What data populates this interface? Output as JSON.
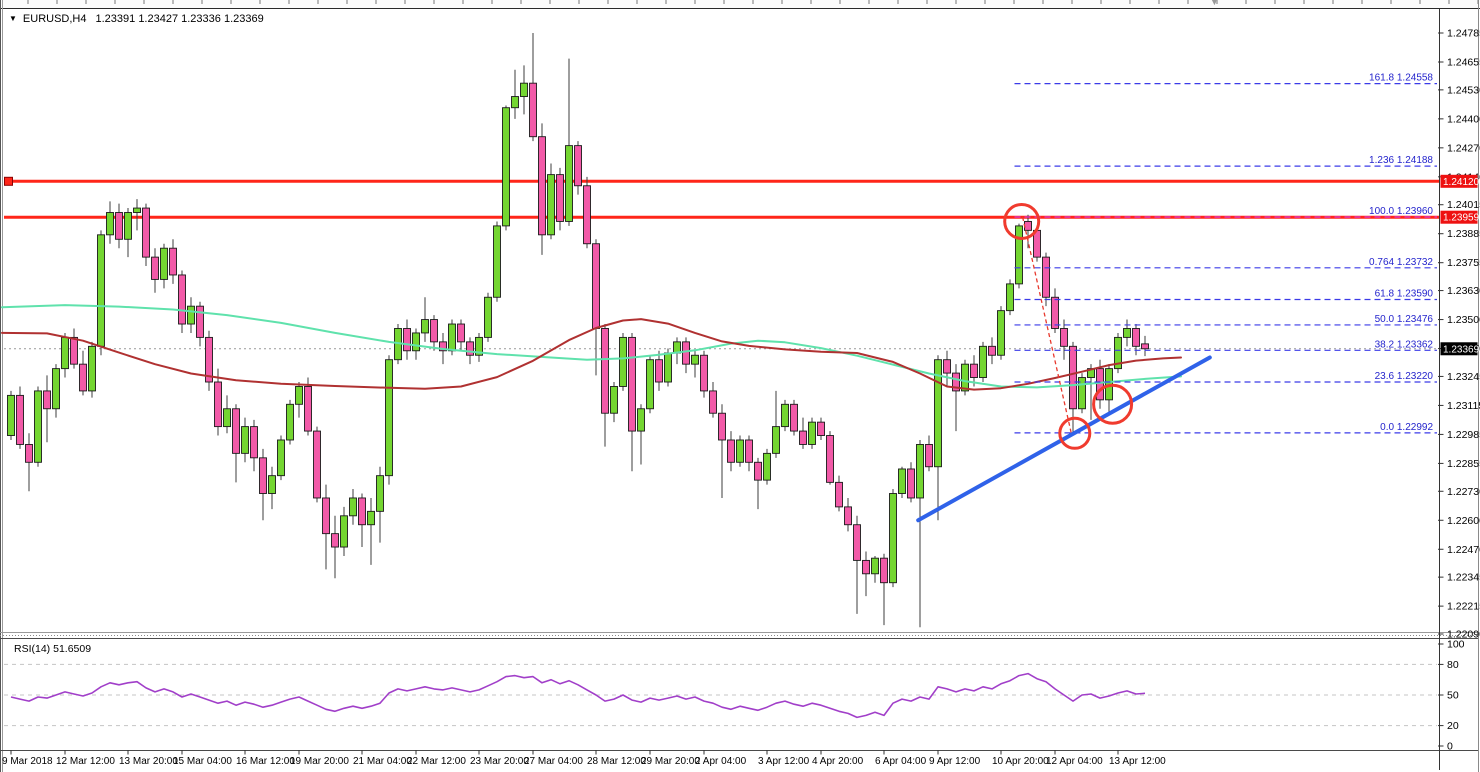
{
  "window": {
    "title_symbol": "EURUSD,H4",
    "title_ohlc": "1.23391 1.23427 1.23336 1.23369",
    "dropdown_caret": "▼"
  },
  "colors": {
    "background": "#FFFFFF",
    "bull": "#74D631",
    "bear": "#F25AA8",
    "candle_outline": "#1a1a1a",
    "wick": "#3C3C3C",
    "ma_green": "#5FE2AC",
    "ma_red": "#B03131",
    "resistance_line": "#FF2619",
    "fib_line": "#3B3BE8",
    "fib_label": "#2424CC",
    "fib_100": "#DB3BDB",
    "fib_connector": "#E8392E",
    "trendline": "#2F62E9",
    "circle": "#F03B2E",
    "rsi_line": "#A13FC9",
    "rsi_grid": "#C4C4C4",
    "current_price_line": "#999999",
    "tag_red_bg": "#EE1111",
    "tag_black_bg": "#000000",
    "tag_text": "#FFFFFF",
    "axis_text": "#000000"
  },
  "chart_data": {
    "type": "candlestick",
    "symbol": "EURUSD",
    "timeframe": "H4",
    "price_range": {
      "top": 1.24785,
      "bottom": 1.2209
    },
    "price_axis_ticks": [
      "1.24785",
      "1.24655",
      "1.24530",
      "1.24400",
      "1.24270",
      "1.24140",
      "1.24015",
      "1.23885",
      "1.23755",
      "1.23630",
      "1.23500",
      "1.23370",
      "1.23245",
      "1.23115",
      "1.22985",
      "1.22855",
      "1.22730",
      "1.22600",
      "1.22470",
      "1.22345",
      "1.22215",
      "1.22090"
    ],
    "x_labels": [
      {
        "label": "9 Mar 2018",
        "index": 0
      },
      {
        "label": "12 Mar 12:00",
        "index": 6
      },
      {
        "label": "13 Mar 20:00",
        "index": 13
      },
      {
        "label": "15 Mar 04:00",
        "index": 19
      },
      {
        "label": "16 Mar 12:00",
        "index": 26
      },
      {
        "label": "19 Mar 20:00",
        "index": 32
      },
      {
        "label": "21 Mar 04:00",
        "index": 39
      },
      {
        "label": "22 Mar 12:00",
        "index": 45
      },
      {
        "label": "23 Mar 20:00",
        "index": 52
      },
      {
        "label": "27 Mar 04:00",
        "index": 58
      },
      {
        "label": "28 Mar 12:00",
        "index": 65
      },
      {
        "label": "29 Mar 20:00",
        "index": 71
      },
      {
        "label": "2 Apr 04:00",
        "index": 77
      },
      {
        "label": "3 Apr 12:00",
        "index": 84
      },
      {
        "label": "4 Apr 20:00",
        "index": 90
      },
      {
        "label": "6 Apr 04:00",
        "index": 97
      },
      {
        "label": "9 Apr 12:00",
        "index": 103
      },
      {
        "label": "10 Apr 20:00",
        "index": 110
      },
      {
        "label": "12 Apr 04:00",
        "index": 116
      },
      {
        "label": "13 Apr 12:00",
        "index": 123
      }
    ],
    "candles": [
      [
        1.2298,
        1.2318,
        1.2296,
        1.2316
      ],
      [
        1.2316,
        1.232,
        1.2292,
        1.2294
      ],
      [
        1.2294,
        1.2299,
        1.2273,
        1.2286
      ],
      [
        1.2286,
        1.232,
        1.2284,
        1.2318
      ],
      [
        1.2318,
        1.2325,
        1.2295,
        1.231
      ],
      [
        1.231,
        1.233,
        1.2306,
        1.2328
      ],
      [
        1.2328,
        1.2344,
        1.2324,
        1.2342
      ],
      [
        1.2342,
        1.2346,
        1.2328,
        1.233
      ],
      [
        1.233,
        1.2336,
        1.2316,
        1.2318
      ],
      [
        1.2318,
        1.234,
        1.2315,
        1.2338
      ],
      [
        1.2338,
        1.239,
        1.2334,
        1.2388
      ],
      [
        1.2388,
        1.2403,
        1.2384,
        1.2398
      ],
      [
        1.2398,
        1.2402,
        1.2382,
        1.2386
      ],
      [
        1.2386,
        1.24,
        1.2378,
        1.2398
      ],
      [
        1.2398,
        1.2404,
        1.239,
        1.24
      ],
      [
        1.24,
        1.2402,
        1.2374,
        1.2378
      ],
      [
        1.2378,
        1.2382,
        1.2362,
        1.2368
      ],
      [
        1.2368,
        1.2384,
        1.2364,
        1.2382
      ],
      [
        1.2382,
        1.2386,
        1.2366,
        1.237
      ],
      [
        1.237,
        1.2372,
        1.2344,
        1.2348
      ],
      [
        1.2348,
        1.236,
        1.2344,
        1.2356
      ],
      [
        1.2356,
        1.2358,
        1.2338,
        1.2342
      ],
      [
        1.2342,
        1.2345,
        1.2318,
        1.2322
      ],
      [
        1.2322,
        1.2328,
        1.2298,
        1.2302
      ],
      [
        1.2302,
        1.2316,
        1.2299,
        1.231
      ],
      [
        1.231,
        1.2312,
        1.2277,
        1.229
      ],
      [
        1.229,
        1.2306,
        1.2286,
        1.2302
      ],
      [
        1.2302,
        1.2305,
        1.2282,
        1.2288
      ],
      [
        1.2288,
        1.2292,
        1.226,
        1.2272
      ],
      [
        1.2272,
        1.2284,
        1.2265,
        1.228
      ],
      [
        1.228,
        1.2298,
        1.2278,
        1.2296
      ],
      [
        1.2296,
        1.2314,
        1.2294,
        1.2312
      ],
      [
        1.2312,
        1.2322,
        1.2306,
        1.232
      ],
      [
        1.232,
        1.2324,
        1.2298,
        1.23
      ],
      [
        1.23,
        1.2302,
        1.2268,
        1.227
      ],
      [
        1.227,
        1.2276,
        1.2238,
        1.2254
      ],
      [
        1.2254,
        1.2262,
        1.2234,
        1.2248
      ],
      [
        1.2248,
        1.2266,
        1.2244,
        1.2262
      ],
      [
        1.2262,
        1.2274,
        1.2258,
        1.227
      ],
      [
        1.227,
        1.2272,
        1.2248,
        1.2258
      ],
      [
        1.2258,
        1.227,
        1.224,
        1.2264
      ],
      [
        1.2264,
        1.2284,
        1.225,
        1.228
      ],
      [
        1.228,
        1.2334,
        1.2276,
        1.2332
      ],
      [
        1.2332,
        1.2348,
        1.233,
        1.2346
      ],
      [
        1.2346,
        1.235,
        1.2332,
        1.2336
      ],
      [
        1.2336,
        1.2346,
        1.2332,
        1.2344
      ],
      [
        1.2344,
        1.236,
        1.234,
        1.235
      ],
      [
        1.235,
        1.2352,
        1.2336,
        1.234
      ],
      [
        1.234,
        1.2344,
        1.233,
        1.2336
      ],
      [
        1.2336,
        1.235,
        1.2334,
        1.2348
      ],
      [
        1.2348,
        1.235,
        1.2336,
        1.234
      ],
      [
        1.234,
        1.2342,
        1.233,
        1.2334
      ],
      [
        1.2334,
        1.2344,
        1.2331,
        1.2342
      ],
      [
        1.2342,
        1.2362,
        1.234,
        1.236
      ],
      [
        1.236,
        1.2394,
        1.2358,
        1.2392
      ],
      [
        1.2392,
        1.2446,
        1.239,
        1.2445
      ],
      [
        1.2445,
        1.2462,
        1.244,
        1.245
      ],
      [
        1.245,
        1.2464,
        1.2442,
        1.2456
      ],
      [
        1.2456,
        1.24785,
        1.243,
        1.2432
      ],
      [
        1.2432,
        1.2438,
        1.2379,
        1.2388
      ],
      [
        1.2388,
        1.242,
        1.2386,
        1.2415
      ],
      [
        1.2415,
        1.2418,
        1.239,
        1.2394
      ],
      [
        1.2394,
        1.2467,
        1.2392,
        1.2428
      ],
      [
        1.2428,
        1.243,
        1.2406,
        1.241
      ],
      [
        1.241,
        1.2414,
        1.2382,
        1.2384
      ],
      [
        1.2384,
        1.2386,
        1.2325,
        1.2346
      ],
      [
        1.2346,
        1.2348,
        1.2293,
        1.2308
      ],
      [
        1.2308,
        1.2322,
        1.2304,
        1.232
      ],
      [
        1.232,
        1.2344,
        1.2318,
        1.2342
      ],
      [
        1.2342,
        1.2344,
        1.2282,
        1.23
      ],
      [
        1.23,
        1.2312,
        1.2285,
        1.231
      ],
      [
        1.231,
        1.2334,
        1.2308,
        1.2332
      ],
      [
        1.2332,
        1.2336,
        1.2318,
        1.2322
      ],
      [
        1.2322,
        1.2337,
        1.232,
        1.2335
      ],
      [
        1.2335,
        1.2342,
        1.233,
        1.234
      ],
      [
        1.234,
        1.2342,
        1.2326,
        1.233
      ],
      [
        1.233,
        1.2336,
        1.2324,
        1.2334
      ],
      [
        1.2334,
        1.2336,
        1.2315,
        1.2318
      ],
      [
        1.2318,
        1.2322,
        1.2306,
        1.2308
      ],
      [
        1.2308,
        1.2312,
        1.227,
        1.2296
      ],
      [
        1.2296,
        1.23,
        1.2282,
        1.2286
      ],
      [
        1.2286,
        1.2298,
        1.2284,
        1.2296
      ],
      [
        1.2296,
        1.2298,
        1.2282,
        1.2286
      ],
      [
        1.2286,
        1.2288,
        1.2265,
        1.2278
      ],
      [
        1.2278,
        1.2292,
        1.2276,
        1.229
      ],
      [
        1.229,
        1.2318,
        1.2288,
        1.2302
      ],
      [
        1.2302,
        1.2314,
        1.23,
        1.2312
      ],
      [
        1.2312,
        1.2314,
        1.2298,
        1.23
      ],
      [
        1.23,
        1.2306,
        1.2292,
        1.2294
      ],
      [
        1.2294,
        1.2306,
        1.2292,
        1.2304
      ],
      [
        1.2304,
        1.2306,
        1.2296,
        1.2298
      ],
      [
        1.2298,
        1.23,
        1.2276,
        1.2277
      ],
      [
        1.2277,
        1.228,
        1.2264,
        1.2266
      ],
      [
        1.2266,
        1.227,
        1.2255,
        1.2258
      ],
      [
        1.2258,
        1.2262,
        1.2218,
        1.2242
      ],
      [
        1.2242,
        1.2246,
        1.2226,
        1.2236
      ],
      [
        1.2236,
        1.2244,
        1.2232,
        1.2243
      ],
      [
        1.2243,
        1.2245,
        1.2213,
        1.2232
      ],
      [
        1.2232,
        1.2274,
        1.223,
        1.2272
      ],
      [
        1.2272,
        1.2284,
        1.227,
        1.2283
      ],
      [
        1.2283,
        1.2286,
        1.2268,
        1.227
      ],
      [
        1.227,
        1.2296,
        1.2212,
        1.2294
      ],
      [
        1.2294,
        1.2298,
        1.2282,
        1.2284
      ],
      [
        1.2284,
        1.2334,
        1.226,
        1.2332
      ],
      [
        1.2332,
        1.2336,
        1.232,
        1.2326
      ],
      [
        1.2326,
        1.233,
        1.23,
        1.2318
      ],
      [
        1.2318,
        1.2332,
        1.2316,
        1.233
      ],
      [
        1.233,
        1.2334,
        1.232,
        1.2324
      ],
      [
        1.2324,
        1.234,
        1.2322,
        1.2338
      ],
      [
        1.2338,
        1.2342,
        1.233,
        1.2334
      ],
      [
        1.2334,
        1.2356,
        1.2332,
        1.2354
      ],
      [
        1.2354,
        1.2368,
        1.2352,
        1.2366
      ],
      [
        1.2366,
        1.2393,
        1.2364,
        1.2392
      ],
      [
        1.2394,
        1.2397,
        1.2382,
        1.239
      ],
      [
        1.239,
        1.2392,
        1.2376,
        1.2378
      ],
      [
        1.2378,
        1.238,
        1.2356,
        1.236
      ],
      [
        1.236,
        1.2364,
        1.2344,
        1.2346
      ],
      [
        1.2346,
        1.235,
        1.2332,
        1.2338
      ],
      [
        1.2338,
        1.234,
        1.2298,
        1.231
      ],
      [
        1.231,
        1.2326,
        1.2308,
        1.2324
      ],
      [
        1.2324,
        1.233,
        1.2305,
        1.2328
      ],
      [
        1.2328,
        1.2332,
        1.231,
        1.2314
      ],
      [
        1.2314,
        1.233,
        1.2308,
        1.2328
      ],
      [
        1.2328,
        1.2344,
        1.2326,
        1.2342
      ],
      [
        1.2342,
        1.235,
        1.2338,
        1.2346
      ],
      [
        1.2346,
        1.2348,
        1.2334,
        1.2338
      ],
      [
        1.23391,
        1.23427,
        1.23336,
        1.23369
      ]
    ],
    "ma_green_points": [
      [
        -1,
        1.23555
      ],
      [
        6,
        1.23565
      ],
      [
        12,
        1.23558
      ],
      [
        18,
        1.23545
      ],
      [
        24,
        1.2352
      ],
      [
        30,
        1.23485
      ],
      [
        36,
        1.2344
      ],
      [
        42,
        1.234
      ],
      [
        48,
        1.23368
      ],
      [
        54,
        1.23345
      ],
      [
        60,
        1.2333
      ],
      [
        64,
        1.2332
      ],
      [
        68,
        1.23326
      ],
      [
        72,
        1.23342
      ],
      [
        76,
        1.23362
      ],
      [
        80,
        1.23392
      ],
      [
        83,
        1.23405
      ],
      [
        86,
        1.23398
      ],
      [
        90,
        1.23372
      ],
      [
        94,
        1.23338
      ],
      [
        98,
        1.23298
      ],
      [
        102,
        1.23258
      ],
      [
        106,
        1.23224
      ],
      [
        110,
        1.232
      ],
      [
        114,
        1.23196
      ],
      [
        118,
        1.23206
      ],
      [
        122,
        1.2322
      ],
      [
        126,
        1.23234
      ],
      [
        130,
        1.23245
      ]
    ],
    "ma_red_points": [
      [
        -1,
        1.2344
      ],
      [
        4,
        1.23438
      ],
      [
        8,
        1.23405
      ],
      [
        12,
        1.23352
      ],
      [
        16,
        1.233
      ],
      [
        20,
        1.23258
      ],
      [
        25,
        1.23228
      ],
      [
        30,
        1.23212
      ],
      [
        36,
        1.23202
      ],
      [
        42,
        1.23194
      ],
      [
        46,
        1.2319
      ],
      [
        50,
        1.232
      ],
      [
        54,
        1.23242
      ],
      [
        58,
        1.23315
      ],
      [
        62,
        1.23408
      ],
      [
        65,
        1.23462
      ],
      [
        68,
        1.23496
      ],
      [
        70,
        1.23502
      ],
      [
        73,
        1.23482
      ],
      [
        76,
        1.2344
      ],
      [
        79,
        1.23402
      ],
      [
        82,
        1.23382
      ],
      [
        86,
        1.23366
      ],
      [
        90,
        1.23356
      ],
      [
        94,
        1.2335
      ],
      [
        98,
        1.2331
      ],
      [
        101,
        1.23258
      ],
      [
        104,
        1.232
      ],
      [
        107,
        1.23186
      ],
      [
        110,
        1.23192
      ],
      [
        113,
        1.23212
      ],
      [
        116,
        1.23238
      ],
      [
        119,
        1.23266
      ],
      [
        122,
        1.23296
      ],
      [
        125,
        1.23316
      ],
      [
        128,
        1.23326
      ],
      [
        130,
        1.2333
      ]
    ],
    "horizontal_lines": [
      {
        "price": 1.2412,
        "tag": "1.24120",
        "has_handle": true
      },
      {
        "price": 1.23959,
        "tag": "1.23959",
        "has_handle": false
      }
    ],
    "current_price": {
      "price": 1.23369,
      "tag": "1.23369"
    },
    "fibonacci": {
      "start_index": 111.5,
      "levels": [
        {
          "name": "161.8",
          "price": 1.24558,
          "label": "161.8 1.24558",
          "style": "blue"
        },
        {
          "name": "1.236",
          "price": 1.24188,
          "label": "1.236 1.24188",
          "style": "blue"
        },
        {
          "name": "100.0",
          "price": 1.2396,
          "label": "100.0 1.23960",
          "style": "magenta"
        },
        {
          "name": "0.764",
          "price": 1.23732,
          "label": "0.764 1.23732",
          "style": "blue"
        },
        {
          "name": "61.8",
          "price": 1.2359,
          "label": "61.8 1.23590",
          "style": "blue"
        },
        {
          "name": "50.0",
          "price": 1.23476,
          "label": "50.0 1.23476",
          "style": "blue"
        },
        {
          "name": "38.2",
          "price": 1.23362,
          "label": "38.2 1.23362",
          "style": "blue"
        },
        {
          "name": "23.6",
          "price": 1.2322,
          "label": "23.6 1.23220",
          "style": "blue"
        },
        {
          "name": "0.0",
          "price": 1.22992,
          "label": "0.0 1.22992",
          "style": "blue"
        }
      ],
      "connector": {
        "from": {
          "index": 112.4,
          "price": 1.2396
        },
        "to": {
          "index": 117.8,
          "price": 1.22992
        }
      }
    },
    "trendline": {
      "from": {
        "index": 100.8,
        "price": 1.226
      },
      "to": {
        "index": 133.2,
        "price": 1.2333
      }
    },
    "circles": [
      {
        "index": 112.3,
        "price": 1.2394,
        "r": 17
      },
      {
        "index": 118.2,
        "price": 1.2299,
        "r": 15
      },
      {
        "index": 122.4,
        "price": 1.2312,
        "r": 19
      }
    ],
    "rsi": {
      "label": "RSI(14)",
      "value": "51.6509",
      "levels": [
        80,
        50,
        20
      ],
      "axis_labels": [
        100,
        80,
        50,
        20,
        0
      ],
      "range": [
        0,
        100
      ],
      "period_values": [
        48,
        46,
        44,
        48,
        47,
        50,
        53,
        51,
        49,
        52,
        58,
        62,
        60,
        62,
        63,
        57,
        53,
        56,
        53,
        48,
        51,
        48,
        45,
        42,
        44,
        40,
        43,
        41,
        38,
        40,
        43,
        46,
        48,
        44,
        40,
        36,
        34,
        37,
        39,
        37,
        39,
        42,
        52,
        56,
        54,
        56,
        58,
        56,
        55,
        57,
        55,
        53,
        55,
        59,
        63,
        68,
        69,
        67,
        68,
        62,
        65,
        61,
        64,
        60,
        55,
        50,
        44,
        46,
        50,
        45,
        43,
        47,
        45,
        47,
        49,
        46,
        48,
        44,
        42,
        38,
        36,
        39,
        37,
        35,
        38,
        42,
        44,
        41,
        39,
        42,
        40,
        37,
        34,
        32,
        28,
        30,
        33,
        30,
        42,
        46,
        44,
        48,
        46,
        58,
        56,
        53,
        56,
        54,
        58,
        56,
        61,
        64,
        69,
        71,
        66,
        63,
        56,
        50,
        44,
        50,
        51,
        47,
        49,
        52,
        54,
        51,
        51.65
      ]
    }
  }
}
